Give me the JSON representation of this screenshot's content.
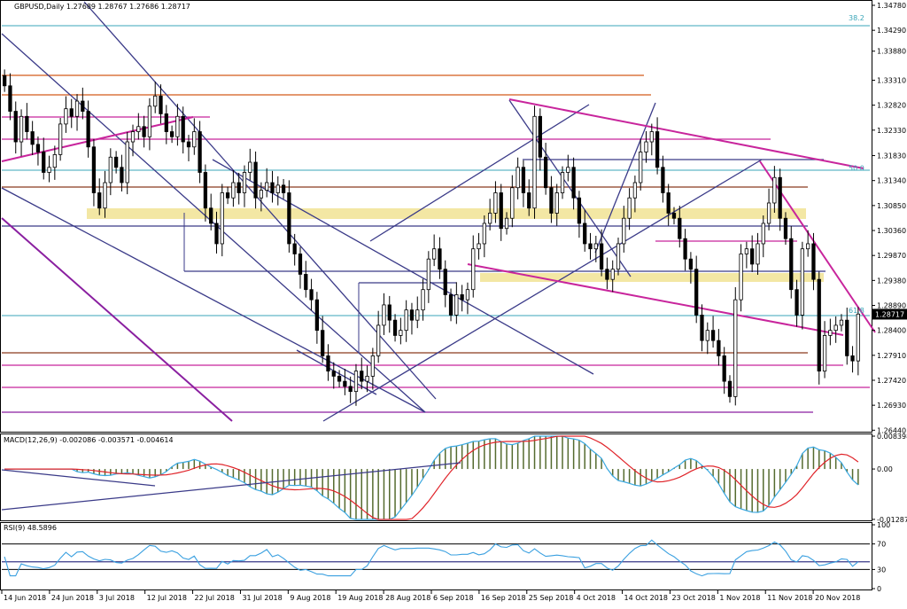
{
  "chart_data": [
    {
      "type": "candlestick",
      "title": "GBPUSD,Daily  1.27689  1.28767  1.27686  1.28717",
      "ylim": [
        1.2648,
        1.3478
      ],
      "y_ticks": [
        "1.34780",
        "1.34290",
        "1.33880",
        "1.33310",
        "1.32820",
        "1.32330",
        "1.31830",
        "1.31340",
        "1.30850",
        "1.30360",
        "1.29870",
        "1.29380",
        "1.28890",
        "1.28400",
        "1.27910",
        "1.27420",
        "1.26930",
        "1.26440"
      ],
      "x_ticks": [
        "14 Jun 2018",
        "24 Jun 2018",
        "3 Jul 2018",
        "12 Jul 2018",
        "22 Jul 2018",
        "31 Jul 2018",
        "9 Aug 2018",
        "19 Aug 2018",
        "28 Aug 2018",
        "6 Sep 2018",
        "16 Sep 2018",
        "25 Sep 2018",
        "4 Oct 2018",
        "14 Oct 2018",
        "23 Oct 2018",
        "1 Nov 2018",
        "11 Nov 2018",
        "20 Nov 2018"
      ],
      "current_price": "1.28717",
      "fib_labels": [
        {
          "text": "38.2",
          "price": 1.3445
        },
        {
          "text": "50.0",
          "price": 1.315
        },
        {
          "text": "61.8",
          "price": 1.2871
        }
      ],
      "closes": [
        1.332,
        1.327,
        1.321,
        1.326,
        1.323,
        1.3205,
        1.319,
        1.315,
        1.316,
        1.3185,
        1.3245,
        1.3275,
        1.326,
        1.329,
        1.327,
        1.32,
        1.311,
        1.308,
        1.313,
        1.318,
        1.316,
        1.313,
        1.321,
        1.323,
        1.324,
        1.322,
        1.328,
        1.33,
        1.3265,
        1.323,
        1.322,
        1.326,
        1.321,
        1.32,
        1.323,
        1.315,
        1.308,
        1.305,
        1.301,
        1.311,
        1.31,
        1.313,
        1.311,
        1.315,
        1.317,
        1.31,
        1.3115,
        1.313,
        1.311,
        1.3125,
        1.311,
        1.301,
        1.299,
        1.295,
        1.292,
        1.29,
        1.284,
        1.279,
        1.276,
        1.275,
        1.274,
        1.273,
        1.272,
        1.276,
        1.274,
        1.275,
        1.279,
        1.285,
        1.289,
        1.286,
        1.283,
        1.284,
        1.288,
        1.286,
        1.288,
        1.292,
        1.298,
        1.3,
        1.296,
        1.291,
        1.287,
        1.291,
        1.29,
        1.292,
        1.3,
        1.301,
        1.305,
        1.307,
        1.311,
        1.304,
        1.306,
        1.312,
        1.316,
        1.311,
        1.308,
        1.326,
        1.318,
        1.312,
        1.307,
        1.311,
        1.315,
        1.316,
        1.31,
        1.305,
        1.301,
        1.3,
        1.301,
        1.296,
        1.294,
        1.296,
        1.301,
        1.306,
        1.31,
        1.313,
        1.319,
        1.321,
        1.323,
        1.316,
        1.311,
        1.307,
        1.306,
        1.302,
        1.298,
        1.296,
        1.287,
        1.282,
        1.284,
        1.282,
        1.279,
        1.274,
        1.271,
        1.29,
        1.299,
        1.3,
        1.297,
        1.301,
        1.305,
        1.309,
        1.314,
        1.306,
        1.302,
        1.292,
        1.287,
        1.3,
        1.301,
        1.294,
        1.276,
        1.283,
        1.284,
        1.285,
        1.286,
        1.279,
        1.278,
        1.2872
      ]
    },
    {
      "type": "line",
      "title": "MACD(12,26,9) -0.002086 -0.003571 -0.004614",
      "y_ticks": [
        "0.008398",
        "0.00",
        "-0.012878"
      ],
      "ylim": [
        -0.0129,
        0.0084
      ]
    },
    {
      "type": "line",
      "title": "RSI(9) 48.5896",
      "y_ticks": [
        "100",
        "70",
        "30",
        "0"
      ],
      "ylim": [
        0,
        100
      ]
    }
  ],
  "colors": {
    "bull": "#ffffff",
    "bear": "#000000",
    "navy_trend": "#3a3a88",
    "magenta_trend": "#c8259c",
    "orange_level": "#d45a1a",
    "brown_level": "#8b3a1e",
    "purple_level": "#8a1fa0",
    "zone": "#f3e7a4",
    "fib": "#3aa6b8",
    "macd_hist": "#556b2f",
    "macd_main": "#3aa8e0",
    "macd_signal": "#e0242a",
    "rsi": "#3aa0e0",
    "price_tag": "#000000"
  }
}
